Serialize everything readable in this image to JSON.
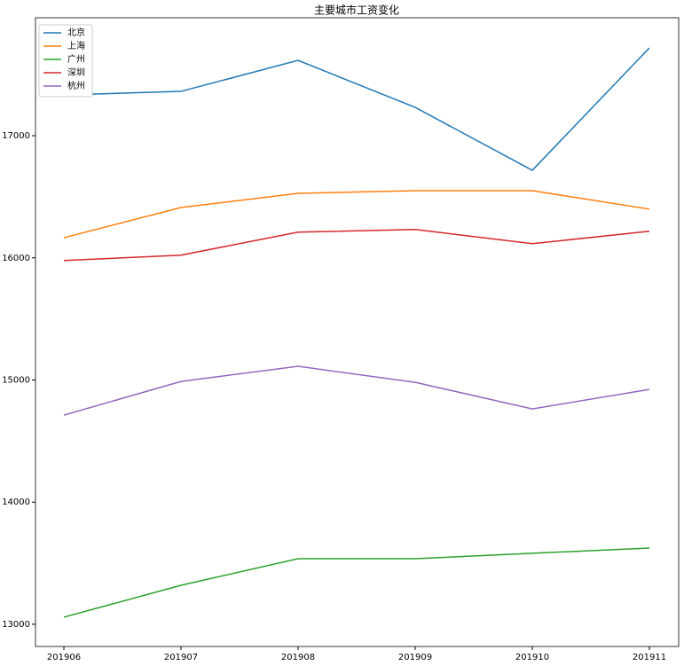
{
  "chart_data": {
    "type": "line",
    "title": "主要城市工资变化",
    "categories": [
      "201906",
      "201907",
      "201908",
      "201909",
      "201910",
      "201911"
    ],
    "series": [
      {
        "name": "北京",
        "color": "#1f77b4",
        "values": [
          17334,
          17363,
          17617,
          17232,
          16717,
          17719
        ]
      },
      {
        "name": "上海",
        "color": "#ff7f0e",
        "values": [
          16165,
          16412,
          16528,
          16550,
          16550,
          16399
        ]
      },
      {
        "name": "广州",
        "color": "#2ca02c",
        "values": [
          13058,
          13319,
          13537,
          13537,
          13581,
          13624
        ]
      },
      {
        "name": "深圳",
        "color": "#d62728",
        "values": [
          15978,
          16022,
          16211,
          16232,
          16116,
          16218
        ]
      },
      {
        "name": "杭州",
        "color": "#9467bd",
        "values": [
          14712,
          14988,
          15112,
          14981,
          14763,
          14923
        ]
      }
    ],
    "ylim": [
      12818,
      17966
    ],
    "yticks": [
      13000,
      14000,
      15000,
      16000,
      17000
    ],
    "grid": false,
    "legend": "upper-left"
  }
}
